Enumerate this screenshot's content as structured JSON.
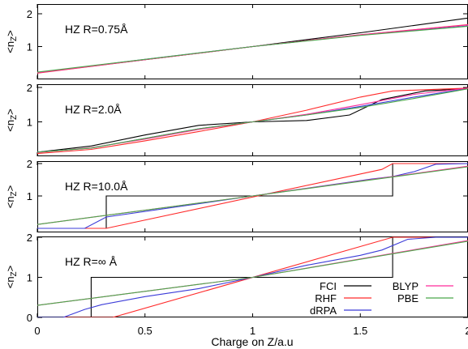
{
  "chart_data": {
    "type": "line",
    "xlabel": "Charge on Z/a.u",
    "xlim": [
      0,
      2
    ],
    "x_ticks": [
      "0",
      "0.5",
      "1",
      "1.5",
      "2"
    ],
    "ylabel": "<n_Z>",
    "colors": {
      "FCI": "#000000",
      "RHF": "#ff2a2a",
      "dRPA": "#3b3bd8",
      "BLYP": "#ff2a9a",
      "PBE": "#4aa84a"
    },
    "legend": {
      "placement": "bottom-right of last panel",
      "entries": [
        "FCI",
        "RHF",
        "dRPA",
        "BLYP",
        "PBE"
      ]
    },
    "panels": [
      {
        "label": "HZ R=0.75Å",
        "ylim": [
          0,
          2
        ],
        "y_ticks": [
          "2",
          "1"
        ],
        "series": [
          {
            "name": "FCI",
            "x": [
              0,
              0.5,
              1,
              1.5,
              2
            ],
            "y": [
              0.21,
              0.6,
              1.0,
              1.42,
              1.87
            ]
          },
          {
            "name": "RHF",
            "x": [
              0,
              0.5,
              1,
              1.5,
              2
            ],
            "y": [
              0.19,
              0.6,
              1.0,
              1.36,
              1.67
            ]
          },
          {
            "name": "dRPA",
            "x": [
              0,
              0.5,
              1,
              1.5,
              2
            ],
            "y": [
              0.21,
              0.61,
              1.0,
              1.35,
              1.63
            ]
          },
          {
            "name": "BLYP",
            "x": [
              0,
              0.5,
              1,
              1.5,
              2
            ],
            "y": [
              0.2,
              0.6,
              1.0,
              1.36,
              1.66
            ]
          },
          {
            "name": "PBE",
            "x": [
              0,
              0.5,
              1,
              1.5,
              2
            ],
            "y": [
              0.22,
              0.61,
              1.0,
              1.34,
              1.62
            ]
          }
        ]
      },
      {
        "label": "HZ R=2.0Å",
        "ylim": [
          0,
          2
        ],
        "y_ticks": [
          "2",
          "1"
        ],
        "series": [
          {
            "name": "FCI",
            "x": [
              0,
              0.25,
              0.5,
              0.75,
              1,
              1.25,
              1.45,
              1.6,
              1.8,
              2
            ],
            "y": [
              0.12,
              0.3,
              0.62,
              0.9,
              1.0,
              1.04,
              1.2,
              1.65,
              1.9,
              1.97
            ]
          },
          {
            "name": "RHF",
            "x": [
              0,
              0.25,
              0.5,
              0.75,
              1,
              1.25,
              1.5,
              1.65,
              2
            ],
            "y": [
              0.08,
              0.2,
              0.45,
              0.72,
              1.0,
              1.34,
              1.72,
              1.9,
              1.98
            ]
          },
          {
            "name": "dRPA",
            "x": [
              0,
              0.25,
              0.5,
              0.75,
              1,
              1.25,
              1.5,
              1.75,
              2
            ],
            "y": [
              0.12,
              0.24,
              0.52,
              0.8,
              1.0,
              1.2,
              1.45,
              1.72,
              1.97
            ]
          },
          {
            "name": "BLYP",
            "x": [
              0,
              0.25,
              0.5,
              0.75,
              1,
              1.25,
              1.5,
              1.75,
              2
            ],
            "y": [
              0.11,
              0.25,
              0.5,
              0.78,
              1.0,
              1.22,
              1.5,
              1.8,
              1.98
            ]
          },
          {
            "name": "PBE",
            "x": [
              0,
              0.25,
              0.5,
              0.75,
              1,
              1.25,
              1.5,
              1.75,
              2
            ],
            "y": [
              0.12,
              0.24,
              0.52,
              0.8,
              1.0,
              1.2,
              1.42,
              1.68,
              1.96
            ]
          }
        ]
      },
      {
        "label": "HZ R=10.0Å",
        "ylim": [
          0,
          2
        ],
        "y_ticks": [
          "2",
          "1"
        ],
        "series": [
          {
            "name": "FCI",
            "x": [
              0.32,
              0.32,
              1.65,
              1.65,
              2
            ],
            "y": [
              0.0,
              1.0,
              1.0,
              2.0,
              2.0
            ]
          },
          {
            "name": "RHF",
            "x": [
              0,
              0.32,
              1.6,
              1.65,
              2
            ],
            "y": [
              0.0,
              0.0,
              1.82,
              2.0,
              2.0
            ]
          },
          {
            "name": "dRPA",
            "x": [
              0,
              0.22,
              0.32,
              1,
              1.55,
              1.65,
              1.75,
              1.85,
              2
            ],
            "y": [
              0.0,
              0.0,
              0.35,
              1.0,
              1.52,
              1.6,
              1.75,
              1.98,
              2.0
            ]
          },
          {
            "name": "BLYP",
            "x": [
              0,
              1,
              2
            ],
            "y": [
              0.12,
              1.0,
              1.92
            ]
          },
          {
            "name": "PBE",
            "x": [
              0,
              1,
              2
            ],
            "y": [
              0.12,
              1.0,
              1.9
            ]
          }
        ]
      },
      {
        "label": "HZ R=∞ Å",
        "ylim": [
          0,
          2
        ],
        "y_ticks": [
          "2",
          "1",
          "0"
        ],
        "series": [
          {
            "name": "FCI",
            "x": [
              0,
              0.25,
              0.25,
              1.65,
              1.65,
              2
            ],
            "y": [
              0.0,
              0.0,
              1.0,
              1.0,
              2.0,
              2.0
            ]
          },
          {
            "name": "RHF",
            "x": [
              0,
              0.35,
              1.65,
              2
            ],
            "y": [
              0.0,
              0.0,
              2.0,
              2.0
            ]
          },
          {
            "name": "dRPA",
            "x": [
              0,
              0.12,
              0.22,
              0.3,
              0.5,
              0.75,
              1.0,
              1.25,
              1.5,
              1.6,
              1.72,
              1.85,
              2
            ],
            "y": [
              0.0,
              0.0,
              0.2,
              0.32,
              0.52,
              0.72,
              1.0,
              1.3,
              1.55,
              1.68,
              1.95,
              2.0,
              2.0
            ]
          },
          {
            "name": "BLYP",
            "x": [
              0,
              1,
              2
            ],
            "y": [
              0.3,
              1.0,
              1.92
            ]
          },
          {
            "name": "PBE",
            "x": [
              0,
              1,
              2
            ],
            "y": [
              0.3,
              1.0,
              1.9
            ]
          }
        ]
      }
    ]
  }
}
